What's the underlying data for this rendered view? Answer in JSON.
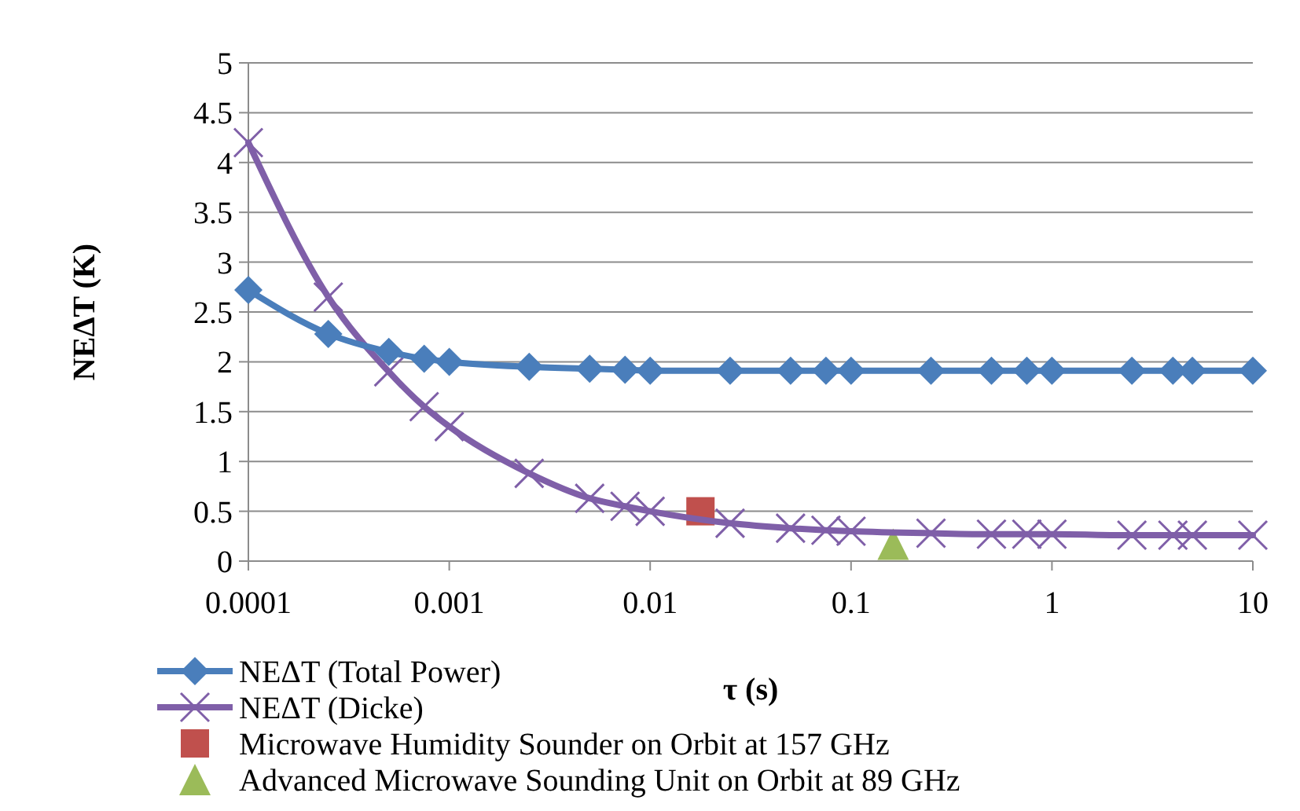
{
  "chart_data": {
    "type": "line",
    "xlabel": "τ (s)",
    "ylabel": "NEΔT (K)",
    "log": "x",
    "grid": "y",
    "legend": "bottom",
    "xlim": [
      0.0001,
      10
    ],
    "xticks": [
      {
        "value": 0.0001,
        "label": "0.0001"
      },
      {
        "value": 0.001,
        "label": "0.001"
      },
      {
        "value": 0.01,
        "label": "0.01"
      },
      {
        "value": 0.1,
        "label": "0.1"
      },
      1,
      10
    ],
    "ylim": [
      0,
      5
    ],
    "yticks": [
      0,
      0.5,
      1,
      1.5,
      2,
      2.5,
      3,
      3.5,
      4,
      4.5,
      5
    ],
    "series": [
      {
        "name": "NEΔT (Total Power)",
        "color": "#4a7ebb",
        "marker": "diamond",
        "x": [
          0.0001,
          0.00025,
          0.0005,
          0.00075,
          0.001,
          0.0025,
          0.005,
          0.0075,
          0.01,
          0.025,
          0.05,
          0.075,
          0.1,
          0.25,
          0.5,
          0.75,
          1,
          2.5,
          4,
          5,
          10
        ],
        "values": [
          2.72,
          2.28,
          2.1,
          2.03,
          2.0,
          1.95,
          1.93,
          1.92,
          1.91,
          1.91,
          1.91,
          1.91,
          1.91,
          1.91,
          1.91,
          1.91,
          1.91,
          1.91,
          1.91,
          1.91,
          1.91
        ]
      },
      {
        "name": "NEΔT (Dicke)",
        "color": "#7f5fa8",
        "marker": "cross",
        "x": [
          0.0001,
          0.00025,
          0.0005,
          0.00075,
          0.001,
          0.0025,
          0.005,
          0.0075,
          0.01,
          0.025,
          0.05,
          0.075,
          0.1,
          0.25,
          0.5,
          0.75,
          1,
          2.5,
          4,
          5,
          10
        ],
        "values": [
          4.2,
          2.65,
          1.9,
          1.55,
          1.35,
          0.88,
          0.63,
          0.55,
          0.5,
          0.38,
          0.33,
          0.31,
          0.3,
          0.28,
          0.27,
          0.27,
          0.27,
          0.26,
          0.26,
          0.26,
          0.26
        ]
      },
      {
        "name": "Microwave Humidity Sounder on Orbit at 157 GHz",
        "type": "scatter",
        "color": "#c0504d",
        "marker": "square",
        "x": [
          0.0178
        ],
        "values": [
          0.5
        ]
      },
      {
        "name": "Advanced Microwave Sounding Unit on Orbit at 89 GHz",
        "type": "scatter",
        "color": "#9bbb59",
        "marker": "triangle",
        "x": [
          0.162
        ],
        "values": [
          0.17
        ]
      }
    ]
  }
}
